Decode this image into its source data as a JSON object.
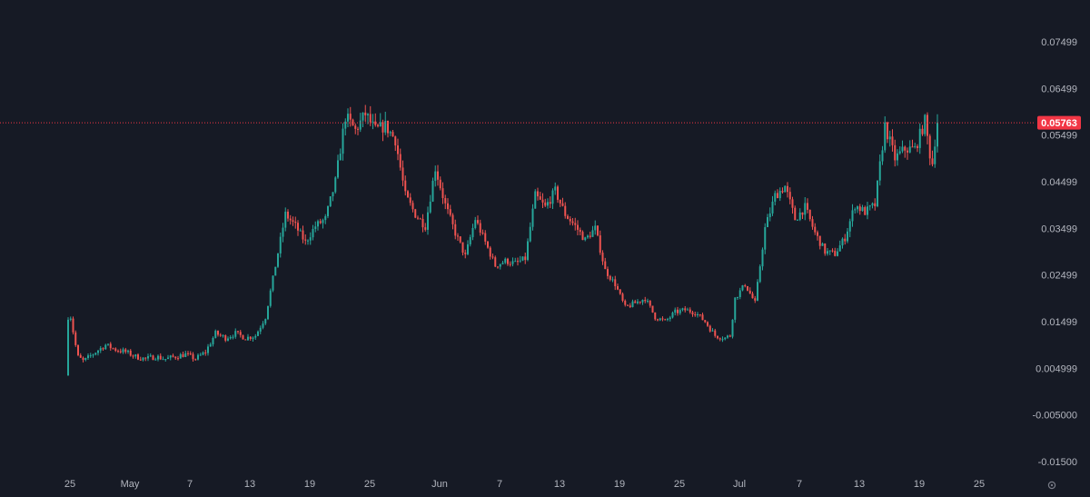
{
  "chart_data": {
    "type": "candlestick",
    "y_ticks": [
      "0.07499",
      "0.06499",
      "0.05499",
      "0.04499",
      "0.03499",
      "0.02499",
      "0.01499",
      "0.004999",
      "-0.005000",
      "-0.01500"
    ],
    "y_tick_values": [
      0.07499,
      0.06499,
      0.05499,
      0.04499,
      0.03499,
      0.02499,
      0.01499,
      0.004999,
      -0.005,
      -0.015
    ],
    "x_ticks": [
      "25",
      "May",
      "7",
      "13",
      "19",
      "25",
      "Jun",
      "7",
      "13",
      "19",
      "25",
      "Jul",
      "7",
      "13",
      "19",
      "25"
    ],
    "x_tick_days": [
      0,
      6,
      12,
      18,
      24,
      30,
      37,
      43,
      49,
      55,
      61,
      67,
      73,
      79,
      85,
      91
    ],
    "ylim": [
      -0.02,
      0.08
    ],
    "last_price": 0.05763,
    "last_price_label": "0.05763",
    "colors": {
      "up": "#26a69a",
      "down": "#ef5350",
      "background": "#161a25",
      "axis_text": "#b2b5be",
      "price_tag": "#f23645"
    },
    "price_path": [
      [
        0,
        0.0035
      ],
      [
        0.3,
        0.0185
      ],
      [
        0.7,
        0.0135
      ],
      [
        1.2,
        0.0075
      ],
      [
        1.8,
        0.0065
      ],
      [
        3,
        0.0085
      ],
      [
        4,
        0.01
      ],
      [
        5,
        0.009
      ],
      [
        6,
        0.0085
      ],
      [
        7,
        0.0075
      ],
      [
        8,
        0.007
      ],
      [
        9,
        0.0075
      ],
      [
        10,
        0.007
      ],
      [
        11,
        0.0075
      ],
      [
        12,
        0.008
      ],
      [
        13,
        0.007
      ],
      [
        14,
        0.0085
      ],
      [
        15,
        0.0125
      ],
      [
        16,
        0.0115
      ],
      [
        17,
        0.0125
      ],
      [
        18,
        0.0115
      ],
      [
        19,
        0.012
      ],
      [
        20,
        0.016
      ],
      [
        21,
        0.027
      ],
      [
        22,
        0.038
      ],
      [
        23,
        0.0355
      ],
      [
        24,
        0.032
      ],
      [
        25,
        0.0355
      ],
      [
        26,
        0.037
      ],
      [
        27,
        0.045
      ],
      [
        28,
        0.059
      ],
      [
        29,
        0.056
      ],
      [
        30,
        0.0595
      ],
      [
        31,
        0.056
      ],
      [
        32,
        0.057
      ],
      [
        33,
        0.054
      ],
      [
        34,
        0.042
      ],
      [
        35,
        0.038
      ],
      [
        36,
        0.0355
      ],
      [
        37,
        0.048
      ],
      [
        38,
        0.04
      ],
      [
        39,
        0.034
      ],
      [
        40,
        0.029
      ],
      [
        41,
        0.037
      ],
      [
        42,
        0.032
      ],
      [
        43,
        0.027
      ],
      [
        44,
        0.028
      ],
      [
        45,
        0.0275
      ],
      [
        46,
        0.0285
      ],
      [
        47,
        0.042
      ],
      [
        48,
        0.0395
      ],
      [
        49,
        0.043
      ],
      [
        50,
        0.038
      ],
      [
        51,
        0.0355
      ],
      [
        52,
        0.0325
      ],
      [
        53,
        0.035
      ],
      [
        54,
        0.026
      ],
      [
        55,
        0.023
      ],
      [
        56,
        0.018
      ],
      [
        57,
        0.019
      ],
      [
        58,
        0.02
      ],
      [
        59,
        0.016
      ],
      [
        60,
        0.015
      ],
      [
        61,
        0.017
      ],
      [
        62,
        0.0175
      ],
      [
        63,
        0.017
      ],
      [
        64,
        0.015
      ],
      [
        65,
        0.012
      ],
      [
        66,
        0.0115
      ],
      [
        66.5,
        0.012
      ],
      [
        67,
        0.02
      ],
      [
        68,
        0.023
      ],
      [
        69,
        0.019
      ],
      [
        70,
        0.035
      ],
      [
        71,
        0.042
      ],
      [
        72,
        0.044
      ],
      [
        73,
        0.037
      ],
      [
        74,
        0.0395
      ],
      [
        75,
        0.034
      ],
      [
        76,
        0.03
      ],
      [
        77,
        0.0295
      ],
      [
        78,
        0.033
      ],
      [
        79,
        0.04
      ],
      [
        80,
        0.0385
      ],
      [
        81,
        0.04
      ],
      [
        82,
        0.057
      ],
      [
        83,
        0.05
      ],
      [
        84,
        0.052
      ],
      [
        85,
        0.052
      ],
      [
        86,
        0.058
      ],
      [
        86.7,
        0.048
      ],
      [
        87.2,
        0.0576
      ]
    ]
  }
}
